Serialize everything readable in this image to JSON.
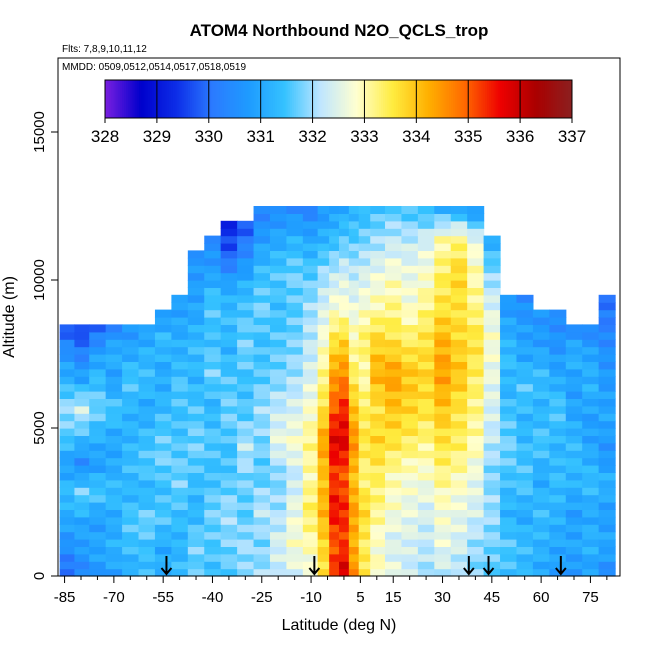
{
  "chart_data": {
    "type": "heatmap",
    "title": "ATOM4 Northbound N2O_QCLS_trop",
    "flights_note": "Flts: 7,8,9,10,11,12",
    "dates_note": "MMDD: 0509,0512,0514,0517,0518,0519",
    "xlabel": "Latitude (deg N)",
    "ylabel": "Altitude (m)",
    "xlim": [
      -87,
      84
    ],
    "ylim": [
      0,
      17500
    ],
    "x_ticks": [
      -85,
      -70,
      -55,
      -40,
      -25,
      -10,
      5,
      15,
      30,
      45,
      60,
      75
    ],
    "x_minor_ticks": [
      -80,
      -75,
      -65,
      -60,
      -50,
      -45,
      -35,
      -30,
      -20,
      -15,
      -5,
      0,
      10,
      20,
      25,
      35,
      40,
      50,
      55,
      65,
      70,
      80
    ],
    "y_ticks": [
      0,
      5000,
      10000,
      15000
    ],
    "colorbar": {
      "labels": [
        "328",
        "329",
        "330",
        "331",
        "332",
        "333",
        "334",
        "335",
        "336",
        "337"
      ],
      "min": 328,
      "max": 337,
      "colors": [
        "#7a1fe0",
        "#0000cc",
        "#0d2ee8",
        "#2b7bff",
        "#1e9bff",
        "#35c2ff",
        "#bfe6ff",
        "#ffffd0",
        "#ffec40",
        "#ffb000",
        "#ff6a00",
        "#ee0000",
        "#aa0000",
        "#8b2020"
      ]
    },
    "arrow_latitudes": [
      -54,
      -9,
      38,
      44,
      66
    ],
    "columns": [
      {
        "lat": -84,
        "ymax": 8500,
        "vals": [
          329.8,
          330.5,
          331.0,
          331.4,
          330.8,
          331.6,
          332.0,
          331.2,
          330.6,
          329.6
        ]
      },
      {
        "lat": -80,
        "ymax": 8500,
        "vals": [
          330.2,
          330.8,
          331.0,
          331.8,
          330.4,
          331.4,
          332.4,
          331.0,
          330.2,
          329.4
        ]
      },
      {
        "lat": -75,
        "ymax": 8500,
        "vals": [
          330.6,
          331.0,
          330.8,
          331.6,
          330.8,
          331.2,
          331.8,
          331.4,
          330.8,
          329.8
        ]
      },
      {
        "lat": -70,
        "ymax": 8500,
        "vals": [
          330.8,
          331.2,
          331.0,
          331.4,
          331.0,
          331.0,
          331.6,
          330.8,
          331.2,
          330.2
        ]
      },
      {
        "lat": -65,
        "ymax": 8500,
        "vals": [
          331.0,
          331.4,
          331.6,
          331.2,
          331.4,
          331.2,
          331.2,
          331.6,
          331.0,
          330.6
        ]
      },
      {
        "lat": -60,
        "ymax": 8500,
        "vals": [
          331.4,
          331.4,
          331.8,
          331.2,
          331.6,
          331.4,
          331.0,
          331.4,
          331.2,
          330.8
        ]
      },
      {
        "lat": -55,
        "ymax": 9000,
        "vals": [
          331.2,
          331.0,
          331.6,
          331.4,
          331.8,
          331.6,
          331.2,
          331.0,
          331.4,
          330.6
        ]
      },
      {
        "lat": -50,
        "ymax": 9500,
        "vals": [
          331.4,
          331.2,
          331.4,
          331.8,
          331.6,
          331.4,
          331.6,
          331.2,
          331.0,
          330.8
        ]
      },
      {
        "lat": -45,
        "ymax": 11000,
        "vals": [
          331.6,
          331.8,
          331.2,
          331.4,
          331.8,
          331.6,
          331.2,
          331.4,
          331.0,
          330.8,
          330.6
        ]
      },
      {
        "lat": -40,
        "ymax": 11500,
        "vals": [
          331.4,
          331.6,
          331.8,
          331.4,
          331.6,
          331.2,
          331.8,
          331.4,
          331.6,
          330.8,
          330.4
        ]
      },
      {
        "lat": -35,
        "ymax": 12000,
        "vals": [
          331.6,
          331.8,
          332.0,
          331.6,
          331.4,
          331.8,
          331.6,
          331.2,
          331.4,
          331.0,
          329.8,
          329.2
        ]
      },
      {
        "lat": -30,
        "ymax": 12000,
        "vals": [
          331.8,
          332.0,
          331.6,
          331.8,
          332.2,
          331.6,
          331.4,
          331.8,
          331.6,
          331.2,
          330.4,
          329.6
        ]
      },
      {
        "lat": -25,
        "ymax": 12500,
        "vals": [
          332.0,
          331.8,
          332.2,
          331.6,
          331.8,
          332.0,
          331.6,
          331.4,
          331.8,
          331.4,
          330.8,
          330.2
        ]
      },
      {
        "lat": -20,
        "ymax": 12500,
        "vals": [
          332.2,
          332.4,
          332.0,
          331.8,
          332.6,
          332.2,
          331.8,
          331.6,
          331.4,
          331.6,
          331.0,
          330.4
        ]
      },
      {
        "lat": -15,
        "ymax": 12500,
        "vals": [
          332.4,
          332.8,
          332.6,
          332.2,
          332.8,
          332.4,
          332.0,
          331.8,
          331.6,
          331.8,
          331.2,
          330.4
        ]
      },
      {
        "lat": -10,
        "ymax": 12500,
        "vals": [
          332.6,
          333.0,
          333.4,
          333.0,
          333.2,
          332.8,
          332.4,
          332.2,
          332.0,
          331.6,
          331.0,
          330.2
        ]
      },
      {
        "lat": -6,
        "ymax": 12500,
        "vals": [
          333.6,
          333.8,
          334.2,
          334.0,
          334.4,
          333.6,
          333.2,
          332.8,
          332.4,
          332.0,
          331.2,
          330.6
        ]
      },
      {
        "lat": -3,
        "ymax": 12500,
        "vals": [
          335.4,
          335.0,
          335.6,
          335.2,
          335.8,
          335.0,
          334.4,
          333.6,
          332.8,
          332.2,
          331.4,
          330.8
        ]
      },
      {
        "lat": 0,
        "ymax": 12500,
        "vals": [
          336.0,
          335.2,
          335.4,
          335.0,
          335.8,
          335.4,
          334.6,
          333.8,
          332.8,
          332.4,
          331.6,
          331.0
        ]
      },
      {
        "lat": 3,
        "ymax": 12500,
        "vals": [
          334.6,
          334.2,
          334.4,
          334.0,
          334.6,
          334.0,
          333.4,
          333.0,
          332.6,
          332.2,
          331.6,
          331.2
        ]
      },
      {
        "lat": 6,
        "ymax": 12500,
        "vals": [
          333.6,
          333.4,
          333.8,
          333.2,
          333.6,
          333.4,
          333.0,
          333.4,
          332.8,
          332.4,
          331.8,
          331.2
        ]
      },
      {
        "lat": 10,
        "ymax": 12500,
        "vals": [
          333.0,
          332.8,
          333.2,
          333.4,
          333.8,
          333.6,
          334.2,
          333.8,
          333.0,
          332.6,
          332.0,
          331.4
        ]
      },
      {
        "lat": 15,
        "ymax": 12500,
        "vals": [
          332.6,
          332.4,
          332.8,
          333.0,
          333.6,
          334.0,
          334.4,
          333.6,
          333.2,
          332.8,
          332.2,
          331.6
        ]
      },
      {
        "lat": 20,
        "ymax": 12500,
        "vals": [
          332.2,
          332.4,
          332.6,
          332.8,
          333.4,
          333.8,
          334.0,
          333.4,
          332.8,
          332.6,
          332.2,
          331.4
        ]
      },
      {
        "lat": 25,
        "ymax": 12500,
        "vals": [
          332.0,
          332.2,
          332.4,
          332.8,
          333.2,
          333.6,
          333.8,
          333.6,
          333.2,
          332.8,
          332.4,
          331.2
        ]
      },
      {
        "lat": 30,
        "ymax": 12500,
        "vals": [
          332.2,
          332.6,
          332.8,
          333.2,
          333.6,
          334.0,
          334.4,
          334.2,
          333.6,
          333.4,
          333.0,
          331.0
        ]
      },
      {
        "lat": 35,
        "ymax": 12500,
        "vals": [
          332.0,
          332.4,
          332.6,
          333.0,
          333.4,
          333.6,
          334.0,
          333.8,
          333.6,
          333.8,
          333.2,
          330.8
        ]
      },
      {
        "lat": 40,
        "ymax": 12500,
        "vals": [
          331.8,
          332.0,
          332.4,
          332.6,
          333.0,
          333.2,
          333.4,
          333.6,
          333.2,
          333.0,
          332.6,
          330.4
        ]
      },
      {
        "lat": 45,
        "ymax": 11500,
        "vals": [
          331.6,
          331.8,
          332.0,
          331.8,
          332.2,
          332.4,
          332.6,
          332.8,
          332.4,
          331.8,
          331.0
        ]
      },
      {
        "lat": 50,
        "ymax": 9500,
        "vals": [
          331.4,
          331.6,
          331.2,
          331.4,
          331.8,
          331.6,
          331.2,
          331.4,
          331.0,
          330.6
        ]
      },
      {
        "lat": 55,
        "ymax": 9500,
        "vals": [
          331.2,
          331.4,
          331.0,
          331.6,
          331.4,
          331.2,
          331.6,
          331.0,
          330.8,
          330.4
        ]
      },
      {
        "lat": 60,
        "ymax": 9000,
        "vals": [
          331.0,
          331.2,
          331.4,
          331.0,
          331.6,
          331.2,
          331.4,
          330.8,
          330.6
        ]
      },
      {
        "lat": 65,
        "ymax": 9000,
        "vals": [
          330.8,
          331.0,
          331.2,
          331.4,
          331.2,
          331.6,
          331.0,
          330.6,
          330.4
        ]
      },
      {
        "lat": 70,
        "ymax": 8500,
        "vals": [
          330.6,
          331.0,
          330.8,
          331.2,
          331.4,
          331.0,
          330.8,
          331.2,
          330.4
        ]
      },
      {
        "lat": 75,
        "ymax": 8500,
        "vals": [
          330.8,
          331.2,
          331.0,
          331.4,
          331.0,
          330.8,
          331.2,
          331.0,
          330.2
        ]
      },
      {
        "lat": 80,
        "ymax": 9500,
        "vals": [
          330.4,
          331.0,
          330.8,
          331.2,
          330.6,
          331.0,
          330.8,
          330.6,
          330.2,
          330.0
        ]
      }
    ]
  }
}
